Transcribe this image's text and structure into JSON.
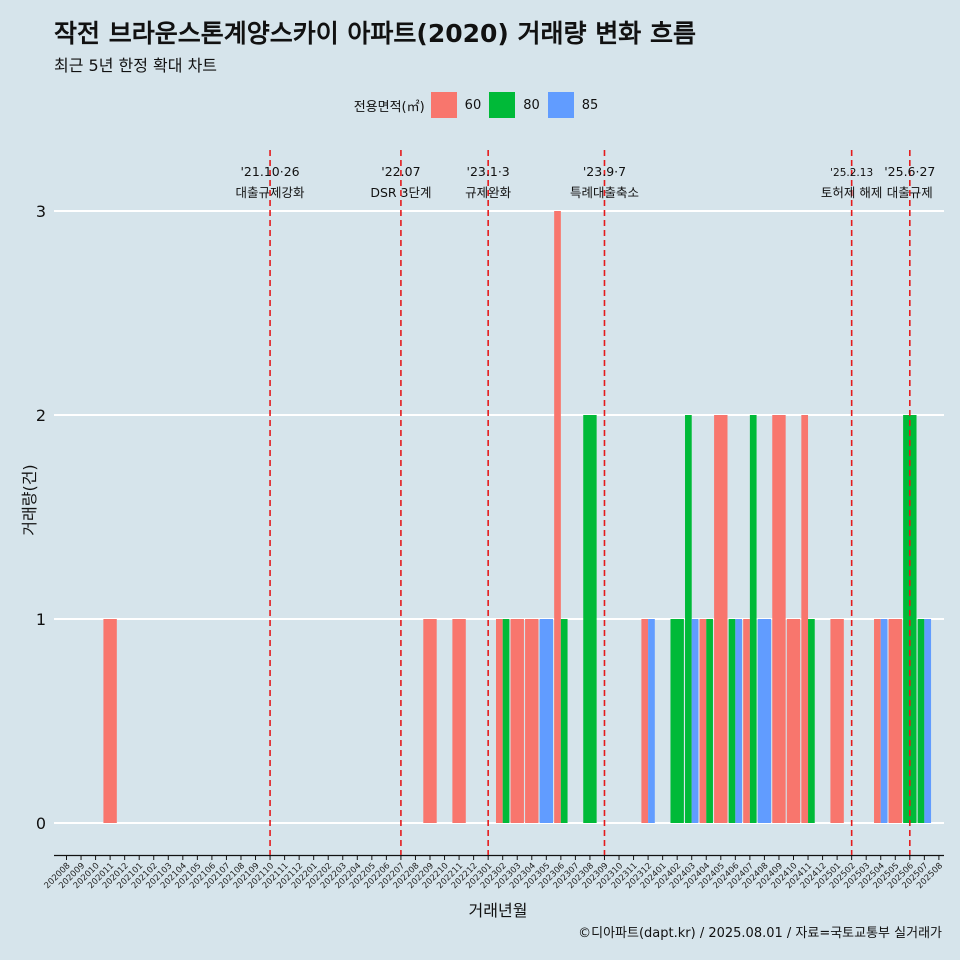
{
  "title": "작전 브라운스톤계양스카이 아파트(2020) 거래량 변화 흐름",
  "subtitle": "최근 5년 한정 확대 차트",
  "caption": "©디아파트(dapt.kr) / 2025.08.01 / 자료=국토교통부 실거래가",
  "colors": {
    "background": "#d6e4eb",
    "s60": "#f8766d",
    "s80": "#00ba38",
    "s85": "#619cff",
    "vline": "#e41a1c",
    "grid": "#ffffff"
  },
  "chart_data": {
    "type": "bar",
    "title": "작전 브라운스톤계양스카이 아파트(2020) 거래량 변화 흐름",
    "subtitle": "최근 5년 한정 확대 차트",
    "xlabel": "거래년월",
    "ylabel": "거래량(건)",
    "ylim": [
      0,
      3
    ],
    "yticks": [
      "0",
      "1",
      "2",
      "3"
    ],
    "legend_title": "전용면적(㎡)",
    "legend_position": "top",
    "categories": [
      "202008",
      "202009",
      "202010",
      "202011",
      "202012",
      "202101",
      "202102",
      "202103",
      "202104",
      "202105",
      "202106",
      "202107",
      "202108",
      "202109",
      "202110",
      "202111",
      "202112",
      "202201",
      "202202",
      "202203",
      "202204",
      "202205",
      "202206",
      "202207",
      "202208",
      "202209",
      "202210",
      "202211",
      "202212",
      "202301",
      "202302",
      "202303",
      "202304",
      "202305",
      "202306",
      "202307",
      "202308",
      "202309",
      "202310",
      "202311",
      "202312",
      "202401",
      "202402",
      "202403",
      "202404",
      "202405",
      "202406",
      "202407",
      "202408",
      "202409",
      "202410",
      "202411",
      "202412",
      "202501",
      "202502",
      "202503",
      "202504",
      "202505",
      "202506",
      "202507",
      "202508"
    ],
    "series": [
      {
        "name": "60",
        "color": "#f8766d",
        "values": [
          0,
          0,
          0,
          1,
          0,
          0,
          0,
          0,
          0,
          0,
          0,
          0,
          0,
          0,
          0,
          0,
          0,
          0,
          0,
          0,
          0,
          0,
          0,
          0,
          0,
          1,
          0,
          1,
          0,
          0,
          1,
          1,
          1,
          0,
          3,
          0,
          0,
          0,
          0,
          0,
          1,
          0,
          0,
          0,
          1,
          2,
          0,
          1,
          0,
          2,
          1,
          2,
          0,
          1,
          0,
          0,
          1,
          1,
          0,
          0,
          0
        ]
      },
      {
        "name": "80",
        "color": "#00ba38",
        "values": [
          0,
          0,
          0,
          0,
          0,
          0,
          0,
          0,
          0,
          0,
          0,
          0,
          0,
          0,
          0,
          0,
          0,
          0,
          0,
          0,
          0,
          0,
          0,
          0,
          0,
          0,
          0,
          0,
          0,
          0,
          1,
          0,
          0,
          0,
          1,
          0,
          2,
          0,
          0,
          0,
          0,
          0,
          1,
          2,
          1,
          0,
          1,
          2,
          0,
          0,
          0,
          1,
          0,
          0,
          0,
          0,
          0,
          0,
          2,
          1,
          0
        ]
      },
      {
        "name": "85",
        "color": "#619cff",
        "values": [
          0,
          0,
          0,
          0,
          0,
          0,
          0,
          0,
          0,
          0,
          0,
          0,
          0,
          0,
          0,
          0,
          0,
          0,
          0,
          0,
          0,
          0,
          0,
          0,
          0,
          0,
          0,
          0,
          0,
          0,
          0,
          0,
          0,
          1,
          0,
          0,
          0,
          0,
          0,
          0,
          1,
          0,
          0,
          1,
          0,
          0,
          1,
          0,
          1,
          0,
          0,
          0,
          0,
          0,
          0,
          0,
          1,
          0,
          0,
          1,
          0
        ]
      }
    ],
    "annotations": [
      {
        "month": "202110",
        "date": "'21.10·26",
        "label": "대출규제강화"
      },
      {
        "month": "202207",
        "date": "'22.07",
        "label": "DSR 3단계"
      },
      {
        "month": "202301",
        "date": "'23.1·3",
        "label": "규제완화"
      },
      {
        "month": "202309",
        "date": "'23.9·7",
        "label": "특례대출축소"
      },
      {
        "month": "202502",
        "date": "'25.2.13",
        "label": "토허제 해제"
      },
      {
        "month": "202506",
        "date": "'25.6·27",
        "label": "대출규제"
      }
    ]
  }
}
